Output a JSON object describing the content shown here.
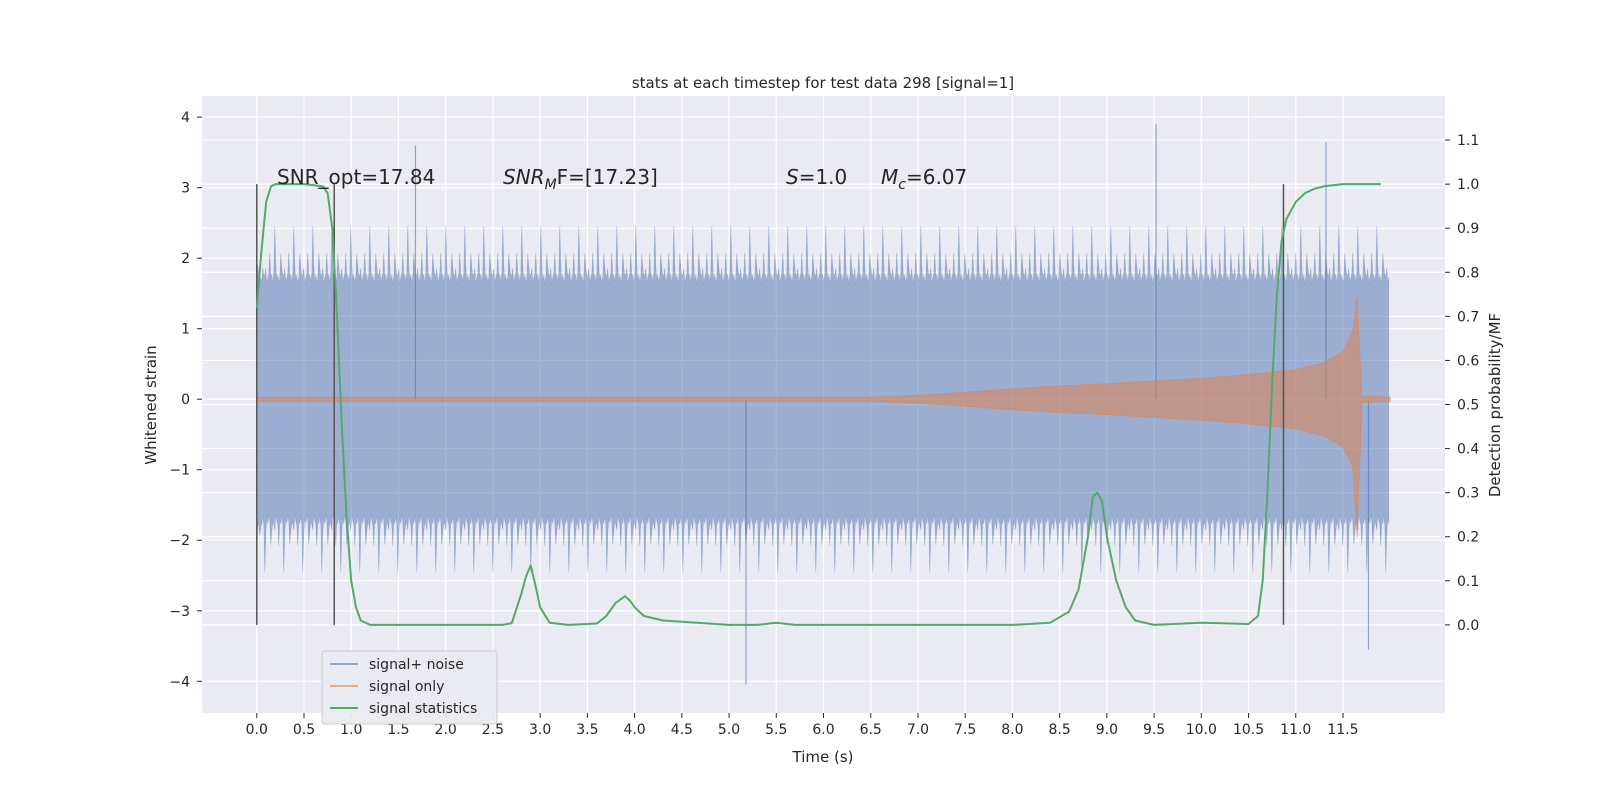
{
  "chart_data": {
    "type": "line",
    "title": "stats at each timestep for test data 298 [signal=1]",
    "xlabel": "Time (s)",
    "ylabel": "Whitened strain",
    "ylabel_right": "Detection probability/MF",
    "xlim": [
      -0.58,
      12.58
    ],
    "ylim": [
      -4.45,
      4.3
    ],
    "ylim_right": [
      -0.2,
      1.2
    ],
    "xticks": [
      "0.0",
      "0.5",
      "1.0",
      "1.5",
      "2.0",
      "2.5",
      "3.0",
      "3.5",
      "4.0",
      "4.5",
      "5.0",
      "5.5",
      "6.0",
      "6.5",
      "7.0",
      "7.5",
      "8.0",
      "8.5",
      "9.0",
      "9.5",
      "10.0",
      "10.5",
      "11.0",
      "11.5"
    ],
    "yticks": [
      -4,
      -3,
      -2,
      -1,
      0,
      1,
      2,
      3,
      4
    ],
    "yticks_right": [
      "0.0",
      "0.1",
      "0.2",
      "0.3",
      "0.4",
      "0.5",
      "0.6",
      "0.7",
      "0.8",
      "0.9",
      "1.0",
      "1.1"
    ],
    "grid": true,
    "legend_position": "lower-left",
    "colors": {
      "noise": "#4c72b0",
      "signal": "#dd8452",
      "stats": "#55a868",
      "background": "#eaeaf2",
      "grid": "#ffffff",
      "vline": "#555555"
    },
    "annotations": {
      "snr_opt": "SNR_opt=17.84",
      "snr_mf_main": "SNR",
      "snr_mf_sub": "M",
      "snr_mf_rest": "F=[17.23]",
      "s_main": "S",
      "s_rest": "=1.0",
      "mc_main": "M",
      "mc_sub": "c",
      "mc_rest": "=6.07"
    },
    "vertical_lines": [
      0.0,
      0.82,
      10.87
    ],
    "series": [
      {
        "name": "signal+ noise",
        "kind": "noise-band",
        "x_range": [
          0.0,
          11.99
        ],
        "typical_amplitude": 1.75,
        "peak_max": 3.9,
        "peak_min": -4.05
      },
      {
        "name": "signal only",
        "kind": "chirp-envelope",
        "x": [
          0.0,
          6.5,
          7.0,
          7.5,
          8.0,
          8.5,
          9.0,
          9.5,
          10.0,
          10.5,
          11.0,
          11.3,
          11.5,
          11.6,
          11.65,
          11.7,
          12.0
        ],
        "envelope": [
          0.03,
          0.03,
          0.06,
          0.1,
          0.15,
          0.19,
          0.22,
          0.26,
          0.3,
          0.35,
          0.42,
          0.52,
          0.68,
          0.95,
          1.45,
          0.05,
          0.03
        ]
      },
      {
        "name": "signal statistics",
        "kind": "line",
        "axis": "right",
        "x": [
          0.0,
          0.05,
          0.1,
          0.15,
          0.2,
          0.3,
          0.5,
          0.7,
          0.75,
          0.8,
          0.85,
          0.9,
          0.95,
          1.0,
          1.05,
          1.1,
          1.2,
          1.4,
          2.0,
          2.6,
          2.7,
          2.8,
          2.85,
          2.9,
          2.95,
          3.0,
          3.1,
          3.3,
          3.6,
          3.7,
          3.8,
          3.9,
          3.95,
          4.0,
          4.1,
          4.3,
          5.0,
          5.3,
          5.5,
          5.7,
          6.0,
          7.0,
          8.0,
          8.4,
          8.6,
          8.7,
          8.8,
          8.85,
          8.9,
          8.95,
          9.0,
          9.1,
          9.2,
          9.3,
          9.5,
          10.0,
          10.5,
          10.6,
          10.65,
          10.7,
          10.75,
          10.8,
          10.85,
          10.9,
          11.0,
          11.1,
          11.2,
          11.3,
          11.5,
          11.9
        ],
        "y": [
          0.72,
          0.85,
          0.96,
          0.995,
          1.0,
          1.0,
          1.0,
          0.995,
          0.98,
          0.9,
          0.7,
          0.45,
          0.25,
          0.1,
          0.04,
          0.01,
          0.0,
          0.0,
          0.0,
          0.0,
          0.004,
          0.07,
          0.11,
          0.135,
          0.09,
          0.04,
          0.005,
          0.0,
          0.003,
          0.02,
          0.05,
          0.065,
          0.055,
          0.04,
          0.02,
          0.01,
          0.0,
          0.0,
          0.005,
          0.0,
          0.0,
          0.0,
          0.0,
          0.005,
          0.03,
          0.08,
          0.2,
          0.29,
          0.3,
          0.28,
          0.2,
          0.1,
          0.04,
          0.01,
          0.0,
          0.005,
          0.002,
          0.02,
          0.1,
          0.3,
          0.55,
          0.75,
          0.87,
          0.92,
          0.96,
          0.98,
          0.99,
          0.995,
          1.0,
          1.0
        ]
      }
    ]
  }
}
